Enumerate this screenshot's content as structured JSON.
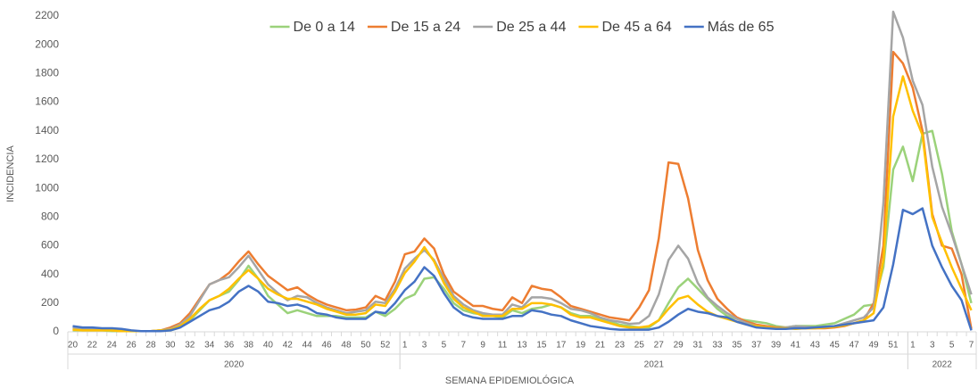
{
  "chart_data": {
    "type": "line",
    "y_label": "INCIDENCIA",
    "x_label": "SEMANA EPIDEMIOLÓGICA",
    "ylim": [
      0,
      2200
    ],
    "yticks": [
      0,
      200,
      400,
      600,
      800,
      1000,
      1200,
      1400,
      1600,
      1800,
      2000,
      2200
    ],
    "grid": false,
    "legend": "top",
    "category_groups": [
      {
        "name": "2020",
        "categories": [
          "20",
          null,
          "22",
          null,
          "24",
          null,
          "26",
          null,
          "28",
          null,
          "30",
          null,
          "32",
          null,
          "34",
          null,
          "36",
          null,
          "38",
          null,
          "40",
          null,
          "42",
          null,
          "44",
          null,
          "46",
          null,
          "48",
          null,
          "50",
          null,
          "52",
          null
        ]
      },
      {
        "name": "2021",
        "categories": [
          "1",
          null,
          "3",
          null,
          "5",
          null,
          "7",
          null,
          "9",
          null,
          "11",
          null,
          "13",
          null,
          "15",
          null,
          "17",
          null,
          "19",
          null,
          "21",
          null,
          "23",
          null,
          "25",
          null,
          "27",
          null,
          "29",
          null,
          "31",
          null,
          "33",
          null,
          "35",
          null,
          "37",
          null,
          "39",
          null,
          "41",
          null,
          "43",
          null,
          "45",
          null,
          "47",
          null,
          "49",
          null,
          "51",
          null
        ]
      },
      {
        "name": "2022",
        "categories": [
          "1",
          null,
          "3",
          null,
          "5",
          null,
          "7"
        ]
      }
    ],
    "series": [
      {
        "name": "De 0 a 14",
        "color": "#9bd27a",
        "values": [
          10,
          10,
          10,
          10,
          5,
          5,
          5,
          5,
          5,
          10,
          10,
          30,
          80,
          150,
          220,
          250,
          280,
          360,
          460,
          370,
          250,
          190,
          130,
          150,
          130,
          110,
          110,
          110,
          100,
          100,
          100,
          140,
          110,
          160,
          230,
          260,
          370,
          380,
          300,
          200,
          150,
          130,
          120,
          110,
          100,
          150,
          130,
          160,
          170,
          190,
          170,
          130,
          110,
          110,
          90,
          70,
          50,
          40,
          30,
          30,
          80,
          200,
          310,
          370,
          300,
          230,
          160,
          110,
          90,
          80,
          70,
          60,
          40,
          30,
          40,
          40,
          40,
          50,
          60,
          90,
          120,
          180,
          190,
          450,
          1130,
          1290,
          1050,
          1380,
          1400,
          1100,
          700,
          470,
          200
        ]
      },
      {
        "name": "De 15 a 24",
        "color": "#ed7d31",
        "values": [
          20,
          15,
          15,
          15,
          10,
          5,
          5,
          5,
          5,
          10,
          30,
          60,
          130,
          230,
          330,
          360,
          410,
          490,
          560,
          470,
          390,
          340,
          290,
          310,
          260,
          220,
          190,
          170,
          150,
          155,
          170,
          250,
          220,
          350,
          540,
          560,
          650,
          580,
          400,
          280,
          230,
          180,
          180,
          160,
          150,
          240,
          200,
          320,
          300,
          290,
          240,
          180,
          160,
          140,
          120,
          100,
          90,
          80,
          170,
          290,
          650,
          1180,
          1170,
          930,
          570,
          360,
          230,
          160,
          100,
          70,
          50,
          40,
          30,
          30,
          25,
          25,
          25,
          25,
          30,
          40,
          60,
          80,
          200,
          600,
          1950,
          1870,
          1700,
          1400,
          820,
          600,
          580,
          400,
          20
        ]
      },
      {
        "name": "De 25 a 44",
        "color": "#a5a5a5",
        "values": [
          30,
          20,
          20,
          15,
          15,
          10,
          5,
          5,
          5,
          10,
          20,
          50,
          110,
          220,
          330,
          360,
          380,
          450,
          530,
          430,
          330,
          270,
          220,
          250,
          240,
          200,
          170,
          150,
          130,
          140,
          150,
          210,
          200,
          300,
          440,
          510,
          570,
          500,
          370,
          250,
          190,
          150,
          130,
          120,
          120,
          190,
          170,
          240,
          240,
          230,
          200,
          160,
          150,
          130,
          100,
          80,
          70,
          55,
          60,
          110,
          260,
          500,
          600,
          510,
          340,
          240,
          180,
          130,
          90,
          60,
          40,
          30,
          25,
          30,
          40,
          35,
          30,
          35,
          40,
          60,
          80,
          100,
          170,
          900,
          2230,
          2050,
          1750,
          1580,
          1150,
          870,
          680,
          470,
          260
        ]
      },
      {
        "name": "De 45 a 64",
        "color": "#ffc000",
        "values": [
          15,
          10,
          10,
          10,
          10,
          5,
          5,
          5,
          5,
          10,
          15,
          40,
          90,
          160,
          220,
          250,
          300,
          370,
          430,
          370,
          300,
          260,
          230,
          230,
          210,
          190,
          160,
          140,
          120,
          120,
          130,
          190,
          180,
          280,
          410,
          490,
          590,
          490,
          340,
          230,
          170,
          140,
          110,
          110,
          110,
          160,
          160,
          200,
          200,
          190,
          170,
          120,
          100,
          100,
          80,
          60,
          40,
          30,
          30,
          40,
          80,
          160,
          230,
          250,
          190,
          140,
          110,
          90,
          70,
          50,
          40,
          30,
          25,
          25,
          20,
          25,
          25,
          30,
          35,
          45,
          60,
          80,
          130,
          500,
          1500,
          1780,
          1540,
          1370,
          800,
          620,
          450,
          300,
          150
        ]
      },
      {
        "name": "Más de 65",
        "color": "#4472c4",
        "values": [
          40,
          30,
          30,
          25,
          25,
          20,
          10,
          5,
          5,
          5,
          10,
          30,
          70,
          110,
          150,
          170,
          210,
          280,
          320,
          280,
          210,
          200,
          180,
          190,
          170,
          130,
          120,
          100,
          90,
          90,
          90,
          140,
          130,
          200,
          290,
          350,
          450,
          390,
          270,
          170,
          120,
          100,
          90,
          90,
          90,
          110,
          110,
          150,
          140,
          120,
          110,
          80,
          60,
          40,
          30,
          20,
          15,
          15,
          15,
          15,
          30,
          70,
          120,
          160,
          140,
          130,
          110,
          100,
          70,
          50,
          30,
          25,
          20,
          20,
          25,
          25,
          30,
          35,
          40,
          50,
          60,
          70,
          80,
          170,
          470,
          850,
          820,
          860,
          600,
          450,
          320,
          220,
          10
        ]
      }
    ]
  }
}
